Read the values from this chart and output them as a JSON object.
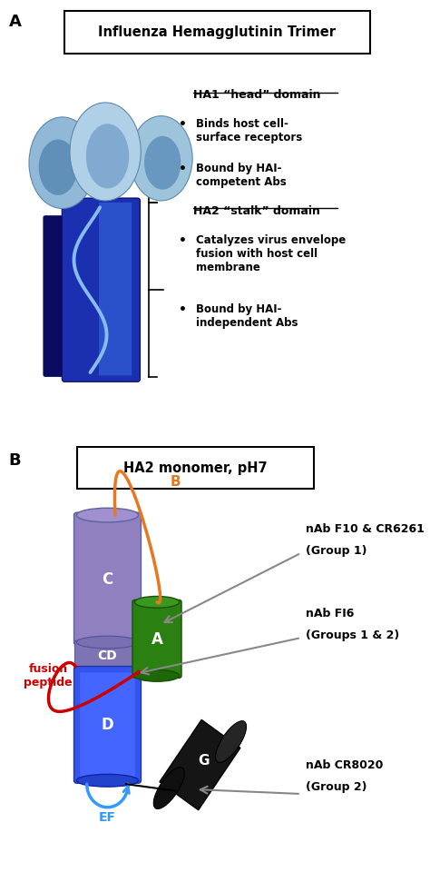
{
  "panel_A_title": "Influenza Hemagglutinin Trimer",
  "panel_B_title": "HA2 monomer, pH7",
  "panel_A_label": "A",
  "panel_B_label": "B",
  "ha1_domain_title": "HA1 “head” domain",
  "ha1_bullet1": "Binds host cell-\nsurface receptors",
  "ha1_bullet2": "Bound by HAI-\ncompetent Abs",
  "ha2_domain_title": "HA2 “stalk” domain",
  "ha2_bullet1": "Catalyzes virus envelope\nfusion with host cell\nmembrane",
  "ha2_bullet2": "Bound by HAI-\nindependent Abs",
  "nab1_line1": "nAb F10 & CR6261",
  "nab1_line2": "(Group 1)",
  "nab2_line1": "nAb FI6",
  "nab2_line2": "(Groups 1 & 2)",
  "nab3_line1": "nAb CR8020",
  "nab3_line2": "(Group 2)",
  "fusion_peptide_label": "fusion\npeptide",
  "segment_C_label": "C",
  "segment_CD_label": "CD",
  "segment_D_label": "D",
  "segment_A_label": "A",
  "segment_G_label": "G",
  "segment_EF_label": "EF",
  "segment_B_label": "B",
  "color_orange": "#e87820",
  "color_red": "#cc0000",
  "color_blue_ef": "#3399ff",
  "color_gray_arrow": "#888888",
  "background_color": "#ffffff"
}
